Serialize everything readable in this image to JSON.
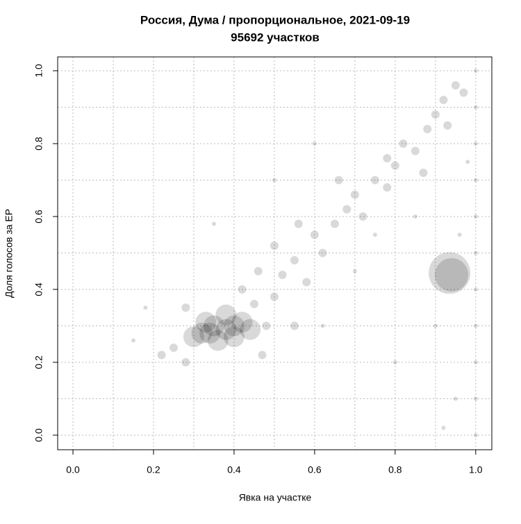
{
  "chart_data": {
    "type": "scatter",
    "title": "Россия, Дума / пропорциональное, 2021-09-19",
    "subtitle": "95692 участков",
    "x_label": "Явка на участке",
    "y_label": "Доля голосов за ЕР",
    "xlim": [
      -0.038,
      1.04
    ],
    "ylim": [
      -0.04,
      1.038
    ],
    "xticks": [
      {
        "value": 0,
        "label": "0.0"
      },
      0.2,
      0.4,
      0.6,
      0.8,
      {
        "value": 1,
        "label": "1.0"
      }
    ],
    "yticks": [
      {
        "value": 0,
        "label": "0.0"
      },
      0.2,
      0.4,
      0.6,
      0.8,
      {
        "value": 1,
        "label": "1.0"
      }
    ],
    "grid": true,
    "xgrid": [
      0,
      0.1,
      0.2,
      0.3,
      0.4,
      0.5,
      0.6,
      0.7,
      0.8,
      0.9,
      1.0
    ],
    "ygrid": [
      0,
      0.1,
      0.2,
      0.3,
      0.4,
      0.5,
      0.6,
      0.7,
      0.8,
      0.9,
      1.0
    ],
    "color": "#000000",
    "opacity": 0.15,
    "x": [
      0.32,
      0.35,
      0.38,
      0.4,
      0.42,
      0.36,
      0.33,
      0.3,
      0.44,
      0.38,
      0.34,
      0.4,
      0.25,
      0.28,
      0.45,
      0.5,
      0.48,
      0.52,
      0.55,
      0.58,
      0.6,
      0.62,
      0.65,
      0.68,
      0.7,
      0.72,
      0.75,
      0.78,
      0.8,
      0.82,
      0.85,
      0.88,
      0.9,
      0.92,
      0.95,
      0.97,
      0.93,
      0.87,
      0.78,
      0.66,
      0.56,
      0.46,
      0.5,
      0.42,
      0.22,
      0.28,
      0.47,
      0.55,
      0.15,
      0.18,
      0.62,
      0.7,
      0.75,
      0.85,
      0.6,
      0.5,
      0.9,
      0.95,
      0.92,
      0.8,
      0.35,
      0.98,
      0.96,
      1.0,
      1.0,
      1.0,
      1.0,
      1.0,
      1.0,
      1.0,
      1.0,
      1.0,
      1.0,
      1.0,
      0.94,
      0.935
    ],
    "y": [
      0.28,
      0.3,
      0.29,
      0.27,
      0.31,
      0.26,
      0.31,
      0.27,
      0.29,
      0.33,
      0.28,
      0.3,
      0.24,
      0.35,
      0.36,
      0.38,
      0.3,
      0.44,
      0.48,
      0.42,
      0.55,
      0.5,
      0.58,
      0.62,
      0.66,
      0.6,
      0.7,
      0.68,
      0.74,
      0.8,
      0.78,
      0.84,
      0.88,
      0.92,
      0.96,
      0.94,
      0.85,
      0.72,
      0.76,
      0.7,
      0.58,
      0.45,
      0.52,
      0.4,
      0.22,
      0.2,
      0.22,
      0.3,
      0.26,
      0.35,
      0.3,
      0.45,
      0.55,
      0.6,
      0.8,
      0.7,
      0.3,
      0.1,
      0.02,
      0.2,
      0.58,
      0.75,
      0.55,
      0.0,
      0.1,
      0.2,
      0.3,
      0.4,
      0.5,
      0.6,
      0.7,
      0.8,
      0.9,
      1.0,
      0.44,
      0.445
    ],
    "sizes": [
      5,
      5,
      5,
      5,
      5,
      5,
      5,
      5,
      5,
      5,
      5,
      5,
      2,
      2,
      2,
      2,
      2,
      2,
      2,
      2,
      2,
      2,
      2,
      2,
      2,
      2,
      2,
      2,
      2,
      2,
      2,
      2,
      2,
      2,
      2,
      2,
      2,
      2,
      2,
      2,
      2,
      2,
      2,
      2,
      2,
      2,
      2,
      2,
      1,
      1,
      1,
      1,
      1,
      1,
      1,
      1,
      1,
      1,
      1,
      1,
      1,
      1,
      1,
      1,
      1,
      1,
      1,
      1,
      1,
      1,
      1,
      1,
      1,
      1,
      8,
      10
    ]
  }
}
